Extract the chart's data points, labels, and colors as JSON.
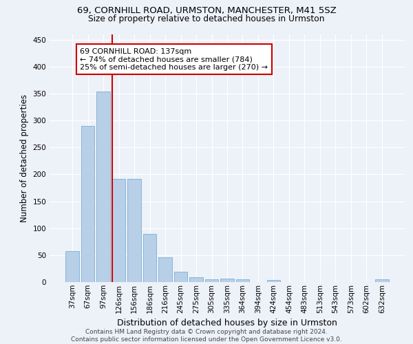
{
  "title_line1": "69, CORNHILL ROAD, URMSTON, MANCHESTER, M41 5SZ",
  "title_line2": "Size of property relative to detached houses in Urmston",
  "xlabel": "Distribution of detached houses by size in Urmston",
  "ylabel": "Number of detached properties",
  "bar_labels": [
    "37sqm",
    "67sqm",
    "97sqm",
    "126sqm",
    "156sqm",
    "186sqm",
    "216sqm",
    "245sqm",
    "275sqm",
    "305sqm",
    "335sqm",
    "364sqm",
    "394sqm",
    "424sqm",
    "454sqm",
    "483sqm",
    "513sqm",
    "543sqm",
    "573sqm",
    "602sqm",
    "632sqm"
  ],
  "bar_values": [
    58,
    290,
    354,
    192,
    192,
    90,
    46,
    19,
    9,
    5,
    6,
    5,
    0,
    4,
    0,
    0,
    0,
    0,
    0,
    0,
    5
  ],
  "bar_color": "#b8cfe8",
  "bar_edge_color": "#7aaed4",
  "vline_pos": 2.58,
  "vline_color": "#cc0000",
  "annotation_line1": "69 CORNHILL ROAD: 137sqm",
  "annotation_line2": "← 74% of detached houses are smaller (784)",
  "annotation_line3": "25% of semi-detached houses are larger (270) →",
  "annotation_box_facecolor": "#ffffff",
  "annotation_box_edgecolor": "#cc0000",
  "ylim": [
    0,
    460
  ],
  "yticks": [
    0,
    50,
    100,
    150,
    200,
    250,
    300,
    350,
    400,
    450
  ],
  "bg_color": "#edf1f8",
  "grid_color": "#ffffff",
  "footer": "Contains HM Land Registry data © Crown copyright and database right 2024.\nContains public sector information licensed under the Open Government Licence v3.0.",
  "title_fontsize": 9.5,
  "subtitle_fontsize": 8.8,
  "ylabel_fontsize": 8.5,
  "xlabel_fontsize": 9,
  "tick_fontsize": 7.5,
  "footer_fontsize": 6.5,
  "annot_fontsize": 8
}
